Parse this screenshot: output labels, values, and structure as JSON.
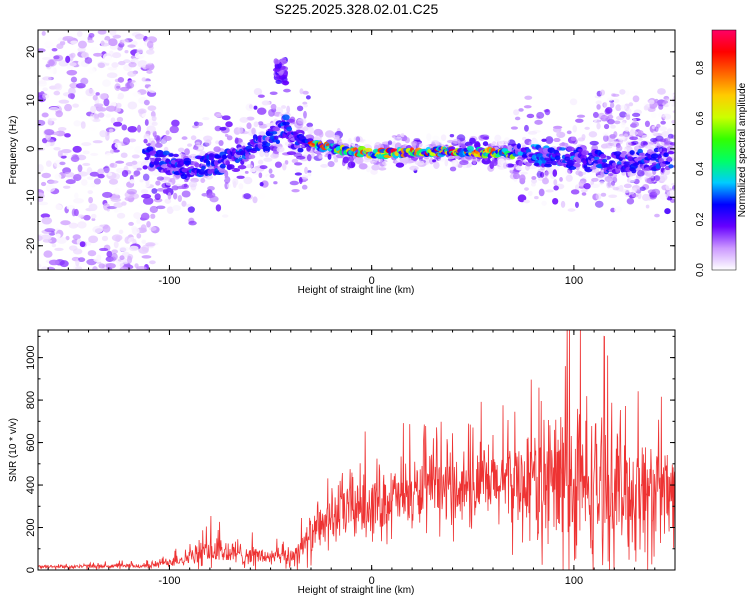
{
  "title": "S225.2025.328.02.01.C25",
  "chart_data": [
    {
      "type": "heatmap",
      "xlabel": "Height of straight line (km)",
      "ylabel": "Frequency (Hz)",
      "xlim": [
        -165,
        150
      ],
      "ylim": [
        -25,
        24.5
      ],
      "xticks": [
        -100,
        0,
        100
      ],
      "yticks": [
        -20,
        -10,
        0,
        10,
        20
      ],
      "colorbar": {
        "label": "Normalized spectral amplitude",
        "range": [
          0,
          0.95
        ],
        "ticks": [
          "0.0",
          "0.2",
          "0.4",
          "0.6",
          "0.8"
        ],
        "tick_values": [
          0.0,
          0.2,
          0.4,
          0.6,
          0.8
        ],
        "colors": [
          "#ffffff",
          "#cc99ff",
          "#6600ff",
          "#0000ff",
          "#00ccff",
          "#00ff66",
          "#33ff00",
          "#ccff00",
          "#ffcc00",
          "#ff6600",
          "#ff0000",
          "#ff0066"
        ]
      },
      "features": {
        "noise_band_x": [
          -165,
          -110
        ],
        "ridge": [
          {
            "x": -110,
            "y": -2
          },
          {
            "x": -90,
            "y": -4
          },
          {
            "x": -75,
            "y": -3
          },
          {
            "x": -60,
            "y": 0
          },
          {
            "x": -50,
            "y": 2
          },
          {
            "x": -42,
            "y": 5
          },
          {
            "x": -38,
            "y": 2
          },
          {
            "x": -25,
            "y": 0.5
          },
          {
            "x": 0,
            "y": -1
          },
          {
            "x": 40,
            "y": -0.5
          },
          {
            "x": 70,
            "y": -1
          },
          {
            "x": 100,
            "y": -2
          },
          {
            "x": 120,
            "y": -3
          },
          {
            "x": 145,
            "y": -2
          }
        ],
        "spike": {
          "x": -45,
          "y": 16
        }
      }
    },
    {
      "type": "line",
      "xlabel": "Height of straight line (km)",
      "ylabel": "SNR (10 * v/v)",
      "xlim": [
        -165,
        150
      ],
      "ylim": [
        0,
        1130
      ],
      "xticks": [
        -100,
        0,
        100
      ],
      "yticks": [
        0,
        200,
        400,
        600,
        800,
        1000
      ],
      "series_color": "#ee3333",
      "envelope": [
        {
          "x": -165,
          "base": 15,
          "amp": 15
        },
        {
          "x": -110,
          "base": 20,
          "amp": 20
        },
        {
          "x": -100,
          "base": 40,
          "amp": 40
        },
        {
          "x": -90,
          "base": 60,
          "amp": 60
        },
        {
          "x": -80,
          "base": 90,
          "amp": 120
        },
        {
          "x": -70,
          "base": 80,
          "amp": 100
        },
        {
          "x": -50,
          "base": 60,
          "amp": 60
        },
        {
          "x": -40,
          "base": 60,
          "amp": 80
        },
        {
          "x": -30,
          "base": 150,
          "amp": 150
        },
        {
          "x": -20,
          "base": 250,
          "amp": 200
        },
        {
          "x": -10,
          "base": 300,
          "amp": 250
        },
        {
          "x": 10,
          "base": 330,
          "amp": 250
        },
        {
          "x": 30,
          "base": 380,
          "amp": 250
        },
        {
          "x": 60,
          "base": 400,
          "amp": 300
        },
        {
          "x": 80,
          "base": 420,
          "amp": 400
        },
        {
          "x": 95,
          "base": 400,
          "amp": 650
        },
        {
          "x": 120,
          "base": 380,
          "amp": 500
        },
        {
          "x": 150,
          "base": 350,
          "amp": 400
        }
      ]
    }
  ]
}
